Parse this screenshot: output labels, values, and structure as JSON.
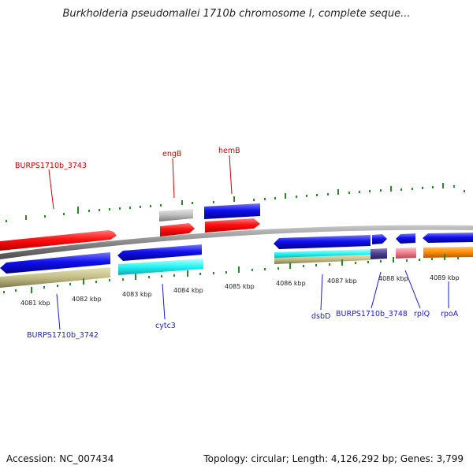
{
  "header": {
    "title": "Burkholderia pseudomallei 1710b chromosome I, complete seque..."
  },
  "footer": {
    "accession": "Accession: NC_007434",
    "summary": "Topology: circular; Length: 4,126,292 bp; Genes: 3,799"
  },
  "axis": {
    "tick_labels": [
      "4081 kbp",
      "4082 kbp",
      "4083 kbp",
      "4084 kbp",
      "4085 kbp",
      "4086 kbp",
      "4087 kbp",
      "4088 kbp",
      "4089 kbp"
    ]
  },
  "genes_top": [
    {
      "name": "BURPS1710b_3743",
      "color": "#ff0000"
    },
    {
      "name": "engB",
      "color": "#ff0000"
    },
    {
      "name": "hemB",
      "color": "#ff0000"
    }
  ],
  "genes_bottom": [
    {
      "name": "BURPS1710b_3742",
      "color": "#0000ee"
    },
    {
      "name": "cytc3",
      "color": "#0000ee"
    },
    {
      "name": "dsbD",
      "color": "#0000ee"
    },
    {
      "name": "BURPS1710b_3748",
      "color": "#0000ee"
    },
    {
      "name": "rplQ",
      "color": "#0000ee"
    },
    {
      "name": "rpoA",
      "color": "#0000ee"
    }
  ],
  "colors": {
    "backbone": "#8a8a8a",
    "tick": "#2a8a2a",
    "cds_red": "#ff1010",
    "cds_blue": "#1010ee",
    "khaki": "#c8c48e",
    "cyan": "#22ffff",
    "orange": "#ff8a00",
    "purple": "#4a3d8a",
    "pink": "#f07a8a",
    "gray": "#bdbdbd"
  }
}
